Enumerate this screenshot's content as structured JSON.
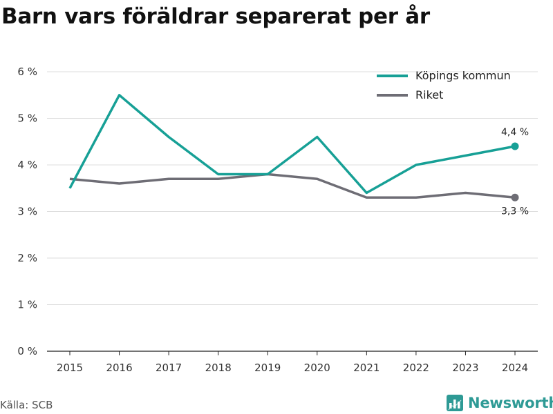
{
  "title": "Barn vars föräldrar separerat per år",
  "source": "Källa: SCB",
  "brand": {
    "name": "Newsworthy",
    "icon": "newsworthy-logo-icon"
  },
  "colors": {
    "kommun": "#17a096",
    "riket": "#6e6d75",
    "grid": "#dddddd",
    "axis": "#222222",
    "brand": "#2e9a95"
  },
  "chart_data": {
    "type": "line",
    "title": "Barn vars föräldrar separerat per år",
    "x": [
      "2015",
      "2016",
      "2017",
      "2018",
      "2019",
      "2020",
      "2021",
      "2022",
      "2023",
      "2024"
    ],
    "series": [
      {
        "name": "Köpings kommun",
        "color": "#17a096",
        "values": [
          3.5,
          5.5,
          4.6,
          3.8,
          3.8,
          4.6,
          3.4,
          4.0,
          4.2,
          4.4
        ],
        "end_label": "4,4 %"
      },
      {
        "name": "Riket",
        "color": "#6e6d75",
        "values": [
          3.7,
          3.6,
          3.7,
          3.7,
          3.8,
          3.7,
          3.3,
          3.3,
          3.4,
          3.3
        ],
        "end_label": "3,3 %"
      }
    ],
    "ylim": [
      0,
      6
    ],
    "yticks": [
      0,
      1,
      2,
      3,
      4,
      5,
      6
    ],
    "ytick_labels": [
      "0 %",
      "1 %",
      "2 %",
      "3 %",
      "4 %",
      "5 %",
      "6 %"
    ],
    "grid": true,
    "legend": "top-right"
  }
}
